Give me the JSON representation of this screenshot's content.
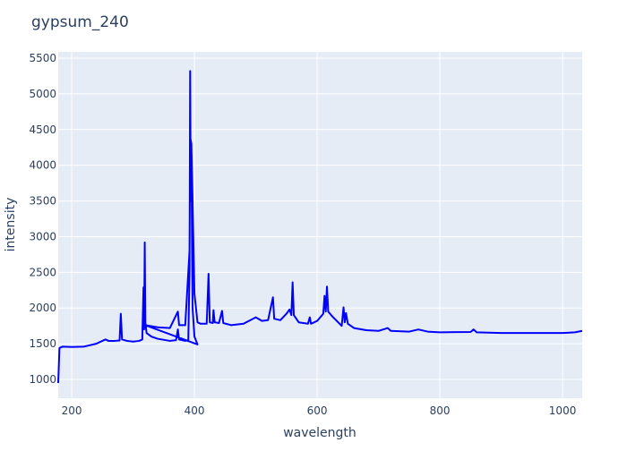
{
  "chart_data": {
    "type": "line",
    "title": "gypsum_240",
    "x_label": "wavelength",
    "y_label": "intensity",
    "color": "#0000ff",
    "grid": true,
    "xlim": [
      178,
      1032
    ],
    "ylim": [
      737,
      5588
    ],
    "xticks": [
      200,
      400,
      600,
      800,
      1000
    ],
    "yticks": [
      1000,
      1500,
      2000,
      2500,
      3000,
      3500,
      4000,
      4500,
      5000,
      5500
    ],
    "x": [
      178,
      180,
      185,
      200,
      220,
      240,
      250,
      255,
      260,
      270,
      278,
      280,
      282,
      290,
      300,
      310,
      315,
      317,
      318,
      319,
      320,
      322,
      330,
      340,
      360,
      370,
      373,
      375,
      385,
      390,
      392,
      393,
      394,
      395,
      396,
      397,
      400,
      405,
      320,
      340,
      360,
      373,
      375,
      385,
      392,
      393,
      395,
      397,
      400,
      405,
      410,
      420,
      423,
      425,
      430,
      431,
      433,
      440,
      445,
      447,
      460,
      480,
      500,
      510,
      520,
      528,
      530,
      540,
      550,
      555,
      558,
      560,
      562,
      570,
      585,
      588,
      590,
      600,
      610,
      612,
      614,
      616,
      618,
      625,
      640,
      643,
      645,
      647,
      650,
      660,
      680,
      700,
      715,
      720,
      750,
      765,
      780,
      800,
      850,
      855,
      860,
      900,
      950,
      1000,
      1020,
      1032
    ],
    "values": [
      950,
      1440,
      1460,
      1455,
      1460,
      1500,
      1540,
      1560,
      1540,
      1540,
      1545,
      1920,
      1560,
      1540,
      1530,
      1540,
      1560,
      2290,
      1700,
      2920,
      1800,
      1650,
      1600,
      1570,
      1540,
      1550,
      1700,
      1560,
      1540,
      1550,
      2500,
      5320,
      3500,
      4300,
      3000,
      2000,
      1600,
      1490,
      1760,
      1730,
      1720,
      1950,
      1760,
      1760,
      2800,
      4400,
      4300,
      3500,
      2200,
      1800,
      1780,
      1780,
      2480,
      1800,
      1790,
      1970,
      1800,
      1790,
      1960,
      1790,
      1760,
      1780,
      1870,
      1820,
      1830,
      2150,
      1850,
      1830,
      1920,
      1980,
      1900,
      2360,
      1900,
      1800,
      1780,
      1870,
      1780,
      1820,
      1920,
      2170,
      1950,
      2300,
      1950,
      1880,
      1750,
      2010,
      1800,
      1930,
      1780,
      1720,
      1690,
      1680,
      1720,
      1680,
      1670,
      1700,
      1670,
      1660,
      1665,
      1700,
      1660,
      1650,
      1650,
      1650,
      1660,
      1680
    ]
  }
}
